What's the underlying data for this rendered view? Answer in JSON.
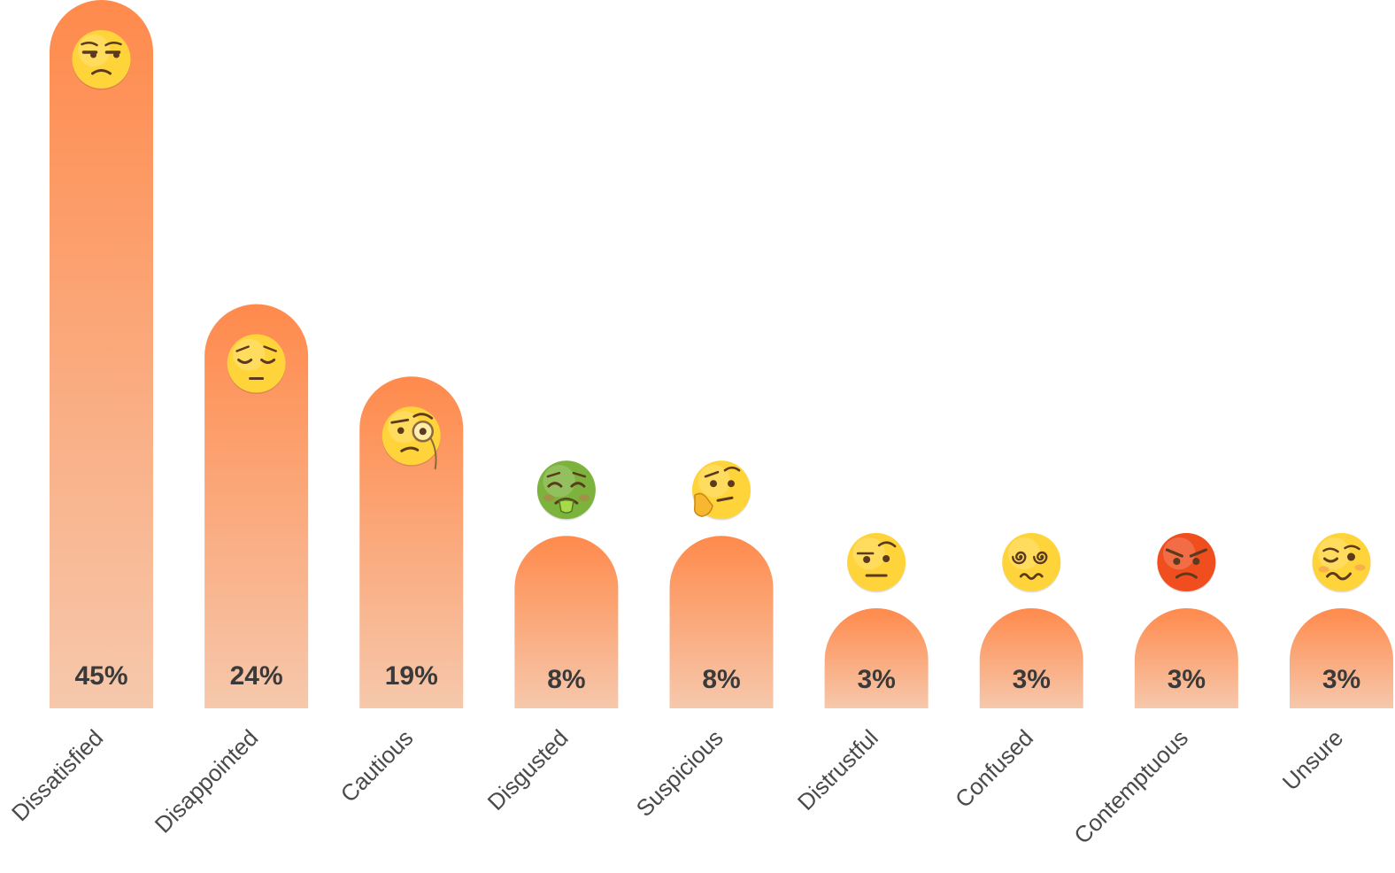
{
  "colors": {
    "bar_top": "#FF8A4C",
    "bar_bottom": "#F6C8AC",
    "face_yellow": "#FFD43B",
    "face_yellow_edge": "#E9A80C",
    "face_green": "#7CB33C",
    "face_red": "#F04E1E",
    "feature": "#5B3A1E",
    "label_text": "#4a4a4a",
    "value_text": "#3a3a3a"
  },
  "chart_data": {
    "type": "bar",
    "categories": [
      "Dissatisfied",
      "Disappointed",
      "Cautious",
      "Disgusted",
      "Suspicious",
      "Distrustful",
      "Confused",
      "Contemptuous",
      "Unsure"
    ],
    "values": [
      45,
      24,
      19,
      8,
      8,
      3,
      3,
      3,
      3
    ],
    "value_labels": [
      "45%",
      "24%",
      "19%",
      "8%",
      "8%",
      "3%",
      "3%",
      "3%",
      "3%"
    ],
    "unit": "%",
    "icons": [
      "unamused-face-icon",
      "pensive-face-icon",
      "monocle-face-icon",
      "nauseated-face-icon",
      "thinking-face-icon",
      "raised-eyebrow-face-icon",
      "dizzy-face-icon",
      "angry-face-icon",
      "woozy-face-icon"
    ],
    "title": "",
    "xlabel": "",
    "ylabel": "",
    "ylim": [
      0,
      45
    ],
    "grid": false,
    "legend": "none"
  }
}
